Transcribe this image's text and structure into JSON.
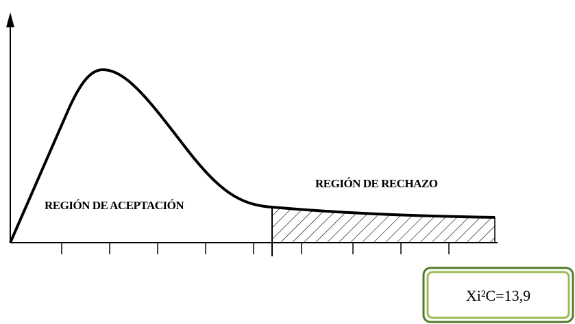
{
  "labels": {
    "acceptance": "REGIÓN DE ACEPTACIÓN",
    "rejection": "REGIÓN DE RECHAZO"
  },
  "result_box": {
    "text": "Xi²C=13,9"
  }
}
